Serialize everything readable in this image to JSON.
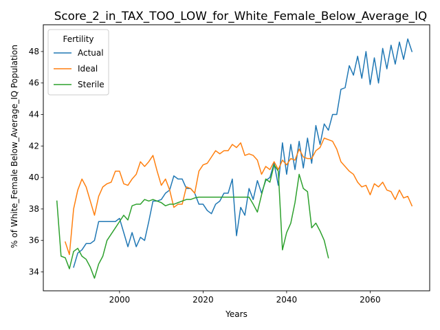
{
  "chart_data": {
    "type": "line",
    "title": "Score_2_in_TAX_TOO_LOW_for_White_Female_Below_Average_IQ",
    "xlabel": "Years",
    "ylabel": "% of White_Female Below_Average_IQ Population",
    "xlim": [
      1981.75,
      2074.25
    ],
    "ylim": [
      32.8,
      49.7
    ],
    "xticks": [
      2000,
      2020,
      2040,
      2060
    ],
    "yticks": [
      34,
      36,
      38,
      40,
      42,
      44,
      46,
      48
    ],
    "grid": false,
    "legend": {
      "title": "Fertility",
      "placement": "top-left"
    },
    "series": [
      {
        "name": "Actual",
        "color": "#1f77b4",
        "x": [
          1989,
          1990,
          1991,
          1992,
          1993,
          1994,
          1995,
          1996,
          1997,
          1998,
          1999,
          2000,
          2001,
          2002,
          2003,
          2004,
          2005,
          2006,
          2007,
          2008,
          2009,
          2010,
          2011,
          2012,
          2013,
          2014,
          2015,
          2016,
          2017,
          2018,
          2019,
          2020,
          2021,
          2022,
          2023,
          2024,
          2025,
          2026,
          2027,
          2028,
          2029,
          2030,
          2031,
          2032,
          2033,
          2034,
          2035,
          2036,
          2037,
          2038,
          2039,
          2040,
          2041,
          2042,
          2043,
          2044,
          2045,
          2046,
          2047,
          2048,
          2049,
          2050,
          2051,
          2052,
          2053,
          2054,
          2055,
          2056,
          2057,
          2058,
          2059,
          2060,
          2061,
          2062,
          2063,
          2064,
          2065,
          2066,
          2067,
          2068,
          2069,
          2070
        ],
        "values": [
          34.3,
          35.2,
          35.4,
          35.8,
          35.8,
          36.0,
          37.2,
          37.2,
          37.2,
          37.2,
          37.2,
          37.4,
          36.5,
          35.6,
          36.5,
          35.6,
          36.2,
          36.0,
          37.2,
          38.5,
          38.5,
          38.6,
          39.0,
          39.2,
          40.1,
          39.9,
          39.9,
          39.3,
          39.3,
          39.0,
          38.3,
          38.3,
          37.9,
          37.7,
          38.3,
          38.5,
          39.0,
          39.0,
          39.9,
          36.3,
          38.1,
          37.6,
          39.3,
          38.6,
          39.8,
          39.0,
          39.8,
          40.0,
          40.9,
          39.5,
          42.2,
          40.2,
          42.1,
          40.5,
          42.3,
          40.6,
          42.5,
          40.9,
          43.3,
          42.1,
          43.4,
          43.0,
          44.0,
          44.0,
          45.6,
          45.7,
          47.1,
          46.5,
          47.7,
          46.3,
          48.0,
          45.9,
          47.6,
          46.0,
          48.2,
          46.9,
          48.4,
          47.2,
          48.6,
          47.5,
          48.8,
          48.0
        ]
      },
      {
        "name": "Ideal",
        "color": "#ff7f0e",
        "x": [
          1987,
          1988,
          1989,
          1990,
          1991,
          1992,
          1993,
          1994,
          1995,
          1996,
          1997,
          1998,
          1999,
          2000,
          2001,
          2002,
          2003,
          2004,
          2005,
          2006,
          2007,
          2008,
          2009,
          2010,
          2011,
          2012,
          2013,
          2014,
          2015,
          2016,
          2017,
          2018,
          2019,
          2020,
          2021,
          2022,
          2023,
          2024,
          2025,
          2026,
          2027,
          2028,
          2029,
          2030,
          2031,
          2032,
          2033,
          2034,
          2035,
          2036,
          2037,
          2038,
          2039,
          2040,
          2041,
          2042,
          2043,
          2044,
          2045,
          2046,
          2047,
          2048,
          2049,
          2050,
          2051,
          2052,
          2053,
          2054,
          2055,
          2056,
          2057,
          2058,
          2059,
          2060,
          2061,
          2062,
          2063,
          2064,
          2065,
          2066,
          2067,
          2068,
          2069,
          2070
        ],
        "values": [
          35.9,
          35.1,
          38.0,
          39.2,
          39.9,
          39.4,
          38.5,
          37.6,
          38.8,
          39.4,
          39.6,
          39.7,
          40.4,
          40.4,
          39.6,
          39.5,
          39.9,
          40.2,
          41.0,
          40.7,
          41.0,
          41.4,
          40.4,
          39.5,
          39.9,
          39.2,
          38.1,
          38.3,
          38.3,
          39.4,
          39.3,
          39.0,
          40.4,
          40.8,
          40.9,
          41.3,
          41.7,
          41.5,
          41.7,
          41.7,
          42.1,
          41.9,
          42.2,
          41.4,
          41.5,
          41.4,
          41.1,
          40.2,
          40.7,
          40.5,
          41.0,
          40.5,
          41.1,
          40.8,
          41.2,
          41.1,
          41.8,
          41.3,
          41.2,
          41.2,
          41.7,
          41.9,
          42.5,
          42.4,
          42.3,
          41.8,
          41.0,
          40.7,
          40.4,
          40.2,
          39.7,
          39.4,
          39.5,
          38.9,
          39.6,
          39.4,
          39.7,
          39.2,
          39.1,
          38.6,
          39.2,
          38.7,
          38.8,
          38.2
        ]
      },
      {
        "name": "Sterile",
        "color": "#2ca02c",
        "x": [
          1985,
          1986,
          1987,
          1988,
          1989,
          1990,
          1991,
          1992,
          1993,
          1994,
          1995,
          1996,
          1997,
          1998,
          1999,
          2000,
          2001,
          2002,
          2003,
          2004,
          2005,
          2006,
          2007,
          2008,
          2009,
          2010,
          2011,
          2012,
          2013,
          2014,
          2015,
          2016,
          2017,
          2018,
          2019,
          2020,
          2021,
          2022,
          2023,
          2024,
          2025,
          2026,
          2027,
          2028,
          2029,
          2030,
          2031,
          2032,
          2033,
          2034,
          2035,
          2036,
          2037,
          2038,
          2039,
          2040,
          2041,
          2042,
          2043,
          2044,
          2045,
          2046,
          2047,
          2048,
          2049,
          2050
        ],
        "values": [
          38.5,
          35.0,
          34.9,
          34.2,
          35.3,
          35.5,
          35.0,
          34.8,
          34.3,
          33.6,
          34.5,
          35.0,
          36.0,
          36.4,
          36.8,
          37.2,
          37.6,
          37.3,
          38.2,
          38.3,
          38.3,
          38.6,
          38.5,
          38.6,
          38.5,
          38.4,
          38.2,
          38.3,
          38.3,
          38.4,
          38.5,
          38.6,
          38.6,
          38.7,
          38.75,
          38.75,
          38.75,
          38.75,
          38.75,
          38.75,
          38.75,
          38.75,
          38.75,
          38.75,
          38.75,
          38.75,
          38.75,
          38.3,
          37.8,
          38.9,
          39.9,
          39.7,
          40.8,
          40.4,
          35.4,
          36.5,
          37.1,
          38.4,
          40.2,
          39.3,
          39.1,
          36.8,
          37.1,
          36.6,
          36.0,
          34.9
        ]
      }
    ]
  }
}
